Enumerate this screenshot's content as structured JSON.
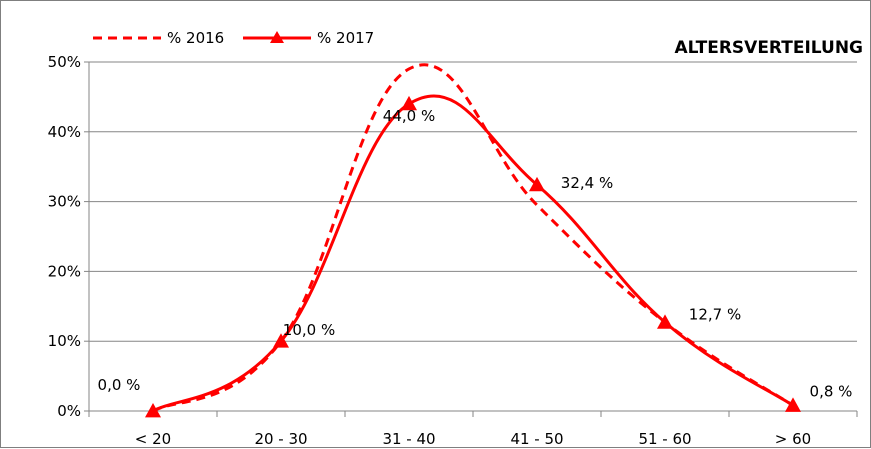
{
  "chart_data": {
    "type": "line",
    "title": "ALTERSVERTEILUNG",
    "categories": [
      "< 20",
      "20 - 30",
      "31 - 40",
      "41 - 50",
      "51 - 60",
      "> 60"
    ],
    "ylim": [
      0,
      50
    ],
    "yticks": [
      "0%",
      "10%",
      "20%",
      "30%",
      "40%",
      "50%"
    ],
    "grid": true,
    "legend_position": "top-left",
    "series": [
      {
        "name": "% 2016",
        "values": [
          0.0,
          10.0,
          49.0,
          29.5,
          12.7,
          0.8
        ],
        "color": "#ff0000",
        "style": "dashed"
      },
      {
        "name": "% 2017",
        "values": [
          0.0,
          10.0,
          44.0,
          32.4,
          12.7,
          0.8
        ],
        "color": "#ff0000",
        "style": "solid",
        "marker": "triangle",
        "data_labels": [
          "0,0 %",
          "10,0 %",
          "44,0 %",
          "32,4 %",
          "12,7 %",
          "0,8 %"
        ]
      }
    ]
  }
}
